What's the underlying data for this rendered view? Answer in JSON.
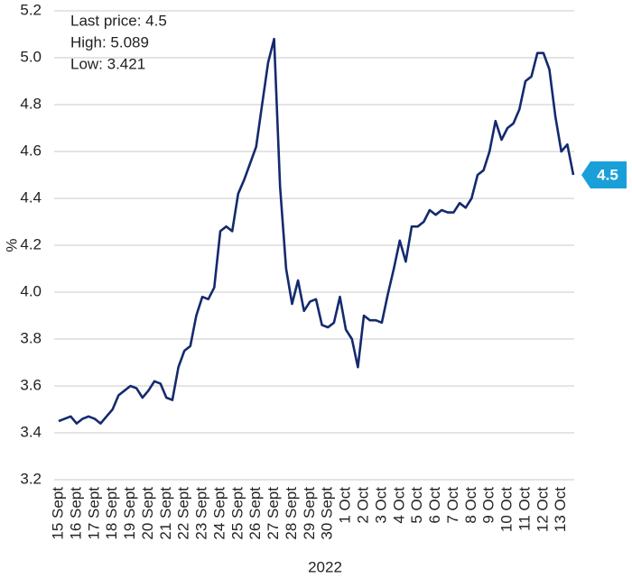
{
  "chart_data": {
    "type": "line",
    "annotations": [
      "Last price: 4.5",
      "High: 5.089",
      "Low: 3.421"
    ],
    "ylabel": "%",
    "xlabel": "2022",
    "categories": [
      "15 Sept",
      null,
      null,
      "16 Sept",
      null,
      null,
      "17 Sept",
      null,
      null,
      "18 Sept",
      null,
      null,
      "19 Sept",
      null,
      null,
      "20 Sept",
      null,
      null,
      "21 Sept",
      null,
      null,
      "22 Sept",
      null,
      null,
      "23 Sept",
      null,
      null,
      "24 Sept",
      null,
      null,
      "25 Sept",
      null,
      null,
      "26 Sept",
      null,
      null,
      "27 Sept",
      null,
      null,
      "28 Sept",
      null,
      null,
      "29 Sept",
      null,
      null,
      "30 Sept",
      null,
      null,
      "1 Oct",
      null,
      null,
      "2 Oct",
      null,
      null,
      "3 Oct",
      null,
      null,
      "4 Oct",
      null,
      null,
      "5 Oct",
      null,
      null,
      "6 Oct",
      null,
      null,
      "7 Oct",
      null,
      null,
      "8 Oct",
      null,
      null,
      "9 Oct",
      null,
      null,
      "10 Oct",
      null,
      null,
      "11 Oct",
      null,
      null,
      "12 Oct",
      null,
      null,
      "13 Oct",
      null,
      null
    ],
    "values": [
      3.45,
      3.46,
      3.47,
      3.44,
      3.46,
      3.47,
      3.46,
      3.44,
      3.47,
      3.5,
      3.56,
      3.58,
      3.6,
      3.59,
      3.55,
      3.58,
      3.62,
      3.61,
      3.55,
      3.54,
      3.68,
      3.75,
      3.77,
      3.9,
      3.98,
      3.97,
      4.02,
      4.26,
      4.28,
      4.26,
      4.42,
      4.48,
      4.55,
      4.62,
      4.8,
      4.98,
      5.08,
      4.45,
      4.1,
      3.95,
      4.05,
      3.92,
      3.96,
      3.97,
      3.86,
      3.85,
      3.87,
      3.98,
      3.84,
      3.8,
      3.68,
      3.9,
      3.88,
      3.88,
      3.87,
      3.99,
      4.1,
      4.22,
      4.13,
      4.28,
      4.28,
      4.3,
      4.35,
      4.33,
      4.35,
      4.34,
      4.34,
      4.38,
      4.36,
      4.4,
      4.5,
      4.52,
      4.6,
      4.73,
      4.65,
      4.7,
      4.72,
      4.78,
      4.9,
      4.92,
      5.02,
      5.02,
      4.95,
      4.75,
      4.6,
      4.63,
      4.5
    ],
    "color": "#142a6e",
    "callout_color": "#1aa0d8",
    "ylim": [
      3.2,
      5.2
    ],
    "yticks": [
      3.2,
      3.4,
      3.6,
      3.8,
      {
        "value": 4,
        "label": "4.0"
      },
      4.2,
      4.4,
      4.6,
      4.8,
      {
        "value": 5,
        "label": "5.0"
      },
      5.2
    ],
    "grid": true
  }
}
